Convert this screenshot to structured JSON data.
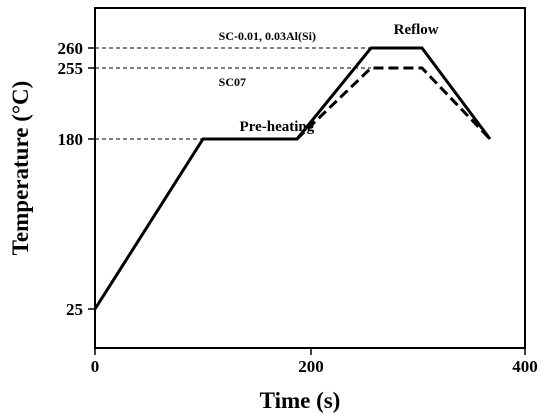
{
  "chart_data": {
    "type": "line",
    "title": "",
    "xlabel": "Time (s)",
    "ylabel": "Temperature (°C)",
    "xlim": [
      0,
      400
    ],
    "x_ticks": [
      0,
      200,
      400
    ],
    "y_ticks": [
      25,
      180,
      255,
      260
    ],
    "grid": false,
    "series": [
      {
        "style": "solid",
        "x": [
          0,
          100,
          190,
          255,
          300,
          360
        ],
        "y": [
          25,
          180,
          180,
          260,
          260,
          180
        ]
      },
      {
        "style": "dashed",
        "x": [
          190,
          255,
          300,
          360
        ],
        "y": [
          180,
          255,
          255,
          180
        ]
      }
    ],
    "reference_lines": [
      {
        "y": 260,
        "x_end": 255
      },
      {
        "y": 255,
        "x_end": 255
      },
      {
        "y": 180,
        "x_end": 100
      }
    ],
    "annotations": [
      {
        "text": "SC-0.01, 0.03Al(Si)",
        "x": 115,
        "y": 260,
        "size": "small"
      },
      {
        "text": "SC07",
        "x": 115,
        "y": 255,
        "size": "small"
      },
      {
        "text": "Pre-heating",
        "x": 135,
        "y": 180,
        "size": "large"
      },
      {
        "text": "Reflow",
        "x": 275,
        "y": 260,
        "size": "large"
      }
    ]
  }
}
